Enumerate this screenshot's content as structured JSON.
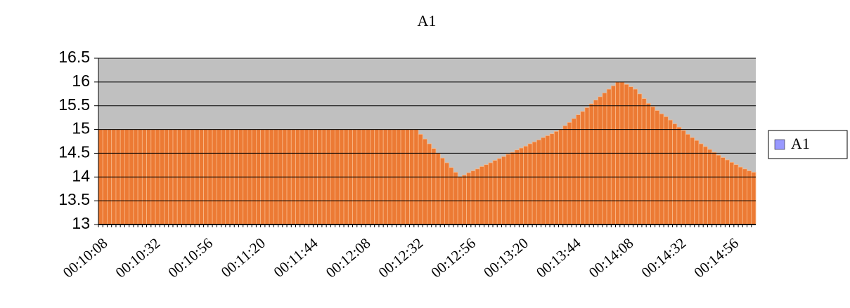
{
  "chart_data": {
    "type": "bar",
    "title": "A1",
    "categories": [
      "00:10:08",
      null,
      null,
      null,
      null,
      null,
      null,
      null,
      null,
      null,
      null,
      null,
      "00:10:32",
      null,
      null,
      null,
      null,
      null,
      null,
      null,
      null,
      null,
      null,
      null,
      "00:10:56",
      null,
      null,
      null,
      null,
      null,
      null,
      null,
      null,
      null,
      null,
      null,
      "00:11:20",
      null,
      null,
      null,
      null,
      null,
      null,
      null,
      null,
      null,
      null,
      null,
      "00:11:44",
      null,
      null,
      null,
      null,
      null,
      null,
      null,
      null,
      null,
      null,
      null,
      "00:12:08",
      null,
      null,
      null,
      null,
      null,
      null,
      null,
      null,
      null,
      null,
      null,
      "00:12:32",
      null,
      null,
      null,
      null,
      null,
      null,
      null,
      null,
      null,
      null,
      null,
      "00:12:56",
      null,
      null,
      null,
      null,
      null,
      null,
      null,
      null,
      null,
      null,
      null,
      "00:13:20",
      null,
      null,
      null,
      null,
      null,
      null,
      null,
      null,
      null,
      null,
      null,
      "00:13:44",
      null,
      null,
      null,
      null,
      null,
      null,
      null,
      null,
      null,
      null,
      null,
      "00:14:08",
      null,
      null,
      null,
      null,
      null,
      null,
      null,
      null,
      null,
      null,
      null,
      "00:14:32",
      null,
      null,
      null,
      null,
      null,
      null,
      null,
      null,
      null,
      null,
      null,
      "00:14:56",
      null,
      null,
      null,
      null,
      null
    ],
    "series": [
      {
        "name": "A1",
        "color": "#ec7a34",
        "legend_color": "#9999ff",
        "values": [
          15,
          15,
          15,
          15,
          15,
          15,
          15,
          15,
          15,
          15,
          15,
          15,
          15,
          15,
          15,
          15,
          15,
          15,
          15,
          15,
          15,
          15,
          15,
          15,
          15,
          15,
          15,
          15,
          15,
          15,
          15,
          15,
          15,
          15,
          15,
          15,
          15,
          15,
          15,
          15,
          15,
          15,
          15,
          15,
          15,
          15,
          15,
          15,
          15,
          15,
          15,
          15,
          15,
          15,
          15,
          15,
          15,
          15,
          15,
          15,
          15,
          15,
          15,
          15,
          15,
          15,
          15,
          15,
          15,
          15,
          15,
          15,
          15,
          14.9,
          14.8,
          14.7,
          14.6,
          14.5,
          14.4,
          14.3,
          14.2,
          14.1,
          14.0,
          14.04,
          14.09,
          14.13,
          14.17,
          14.22,
          14.26,
          14.3,
          14.35,
          14.39,
          14.43,
          14.48,
          14.52,
          14.57,
          14.61,
          14.65,
          14.7,
          14.74,
          14.78,
          14.83,
          14.87,
          14.91,
          14.96,
          15,
          15.08,
          15.15,
          15.23,
          15.31,
          15.38,
          15.46,
          15.54,
          15.62,
          15.69,
          15.77,
          15.85,
          15.92,
          16,
          16,
          15.95,
          15.9,
          15.85,
          15.75,
          15.65,
          15.55,
          15.48,
          15.4,
          15.33,
          15.27,
          15.2,
          15.12,
          15.05,
          14.98,
          14.9,
          14.83,
          14.77,
          14.7,
          14.64,
          14.58,
          14.52,
          14.46,
          14.41,
          14.36,
          14.31,
          14.26,
          14.21,
          14.17,
          14.13,
          14.1
        ]
      }
    ],
    "ylim": [
      13,
      16.5
    ],
    "yticks": [
      13,
      13.5,
      14,
      14.5,
      15,
      15.5,
      16,
      16.5
    ],
    "grid": true,
    "legend": "right"
  }
}
